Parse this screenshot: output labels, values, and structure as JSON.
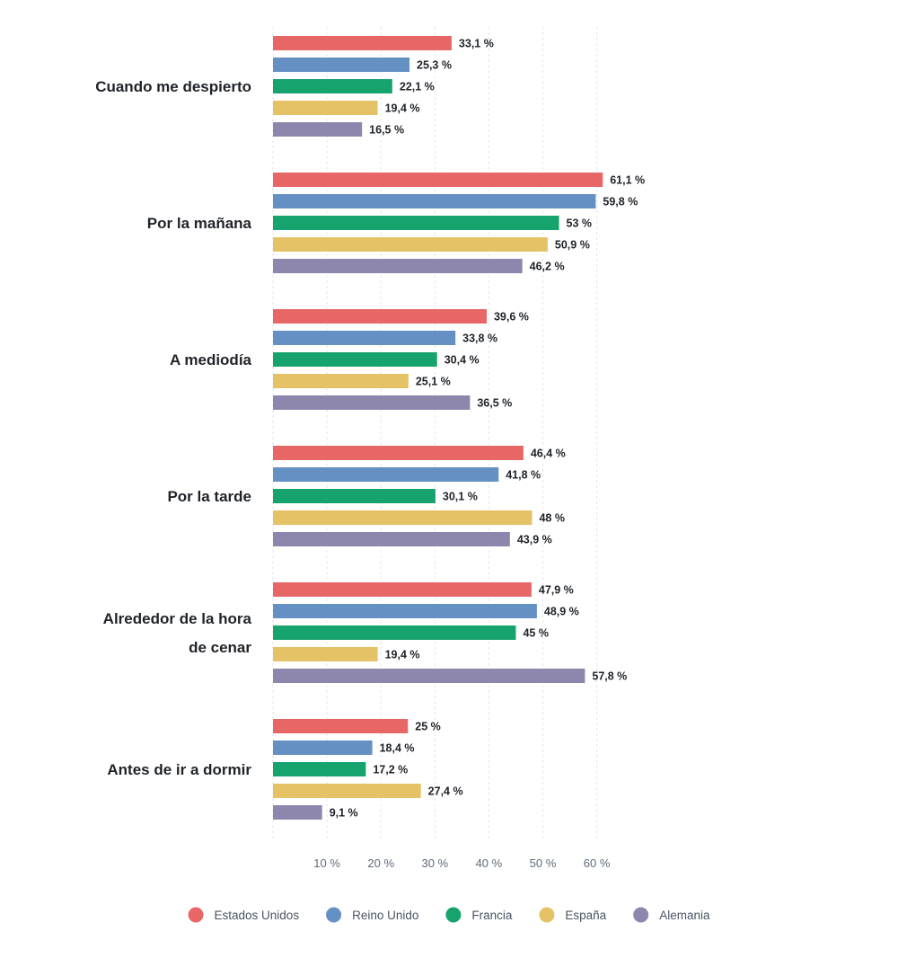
{
  "chart_data": {
    "type": "bar",
    "orientation": "horizontal",
    "categories": [
      [
        "Cuando me despierto"
      ],
      [
        "Por la mañana"
      ],
      [
        "A mediodía"
      ],
      [
        "Por la tarde"
      ],
      [
        "Alrededor de la hora",
        "de cenar"
      ],
      [
        "Antes de ir a dormir"
      ]
    ],
    "series": [
      {
        "name": "Estados Unidos",
        "color": "#e76666",
        "values": [
          33.1,
          61.1,
          39.6,
          46.4,
          47.9,
          25
        ],
        "labels": [
          "33,1 %",
          "61,1 %",
          "39,6 %",
          "46,4 %",
          "47,9 %",
          "25 %"
        ]
      },
      {
        "name": "Reino Unido",
        "color": "#6590c3",
        "values": [
          25.3,
          59.8,
          33.8,
          41.8,
          48.9,
          18.4
        ],
        "labels": [
          "25,3 %",
          "59,8 %",
          "33,8 %",
          "41,8 %",
          "48,9 %",
          "18,4 %"
        ]
      },
      {
        "name": "Francia",
        "color": "#17a36d",
        "values": [
          22.1,
          53,
          30.4,
          30.1,
          45,
          17.2
        ],
        "labels": [
          "22,1 %",
          "53 %",
          "30,4 %",
          "30,1 %",
          "45 %",
          "17,2 %"
        ]
      },
      {
        "name": "España",
        "color": "#e5c266",
        "values": [
          19.4,
          50.9,
          25.1,
          48,
          19.4,
          27.4
        ],
        "labels": [
          "19,4 %",
          "50,9 %",
          "25,1 %",
          "48 %",
          "19,4 %",
          "27,4 %"
        ]
      },
      {
        "name": "Alemania",
        "color": "#8d87ad",
        "values": [
          16.5,
          46.2,
          36.5,
          43.9,
          57.8,
          9.1
        ],
        "labels": [
          "16,5 %",
          "46,2 %",
          "36,5 %",
          "43,9 %",
          "57,8 %",
          "9,1 %"
        ]
      }
    ],
    "xticks": [
      10,
      20,
      30,
      40,
      50,
      60
    ],
    "xtick_labels": [
      "10 %",
      "20 %",
      "30 %",
      "40 %",
      "50 %",
      "60 %"
    ],
    "xlim": [
      0,
      70
    ],
    "grid": true,
    "legend_position": "bottom-center"
  }
}
